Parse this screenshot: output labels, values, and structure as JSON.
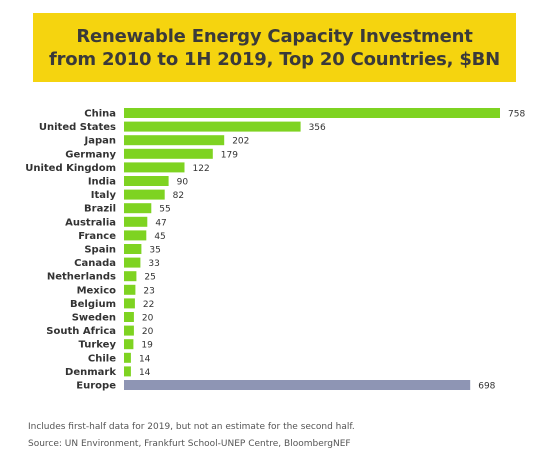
{
  "header": {
    "title_line1": "Renewable Energy Capacity Investment",
    "title_line2": "from 2010 to 1H 2019, Top 20 Countries, $BN"
  },
  "colors": {
    "title_background": "#f5d40f",
    "country_bar": "#7ed321",
    "europe_bar": "#8e95b4"
  },
  "chart_data": {
    "type": "bar",
    "orientation": "horizontal",
    "title": "Renewable Energy Capacity Investment from 2010 to 1H 2019, Top 20 Countries, $BN",
    "categories": [
      "China",
      "United States",
      "Japan",
      "Germany",
      "United Kingdom",
      "India",
      "Italy",
      "Brazil",
      "Australia",
      "France",
      "Spain",
      "Canada",
      "Netherlands",
      "Mexico",
      "Belgium",
      "Sweden",
      "South Africa",
      "Turkey",
      "Chile",
      "Denmark",
      "Europe"
    ],
    "values": [
      758,
      356,
      202,
      179,
      122,
      90,
      82,
      55,
      47,
      45,
      35,
      33,
      25,
      23,
      22,
      20,
      20,
      19,
      14,
      14,
      698
    ],
    "value_labels": [
      "758",
      "356",
      "202",
      "179",
      "122",
      "90",
      "82",
      "55",
      "47",
      "45",
      "35",
      "33",
      "25",
      "23",
      "22",
      "20",
      "20",
      "19",
      "14",
      "14",
      "698"
    ],
    "highlight_category": "Europe",
    "xlim": [
      0,
      758
    ],
    "grid": false,
    "legend": "none"
  },
  "footer": {
    "note": "Includes first-half data for 2019, but not an estimate for the second half.",
    "source": "Source: UN Environment, Frankfurt School-UNEP Centre, BloombergNEF"
  }
}
